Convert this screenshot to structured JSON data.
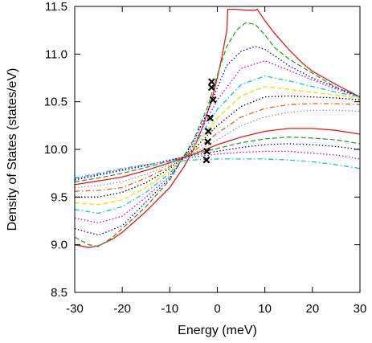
{
  "chart_data": {
    "type": "line",
    "title": "",
    "xlabel": "Energy (meV)",
    "ylabel": "Density of States (states/eV)",
    "xlim": [
      -30,
      30
    ],
    "ylim": [
      8.5,
      11.5
    ],
    "xticks": [
      "-30",
      "-20",
      "-10",
      "0",
      "10",
      "20",
      "30"
    ],
    "yticks": [
      "8.5",
      "9.0",
      "9.5",
      "10.0",
      "10.5",
      "11.0",
      "11.5"
    ],
    "grid": false,
    "legend": "none",
    "series": [
      {
        "color": "#e41a1c",
        "dash": "solid",
        "x": [
          -30,
          -27,
          -25,
          -22,
          -20,
          -15,
          -10,
          -7,
          -5,
          -3,
          -1,
          0,
          1,
          2,
          2.2,
          4,
          6,
          8,
          8.4,
          10,
          12,
          15,
          18,
          20,
          25,
          30
        ],
        "y": [
          9.0,
          8.97,
          8.99,
          9.06,
          9.13,
          9.35,
          9.6,
          9.82,
          10.0,
          10.25,
          10.55,
          10.75,
          10.98,
          11.25,
          11.47,
          11.47,
          11.46,
          11.46,
          11.47,
          11.35,
          11.22,
          11.05,
          10.9,
          10.82,
          10.68,
          10.55
        ]
      },
      {
        "color": "#2ca02c",
        "dash": "dash",
        "x": [
          -30,
          -27,
          -25,
          -22,
          -20,
          -15,
          -10,
          -5,
          -2,
          0,
          2,
          4,
          6,
          8,
          10,
          12,
          15,
          20,
          25,
          30
        ],
        "y": [
          9.08,
          9.0,
          8.98,
          9.08,
          9.17,
          9.4,
          9.68,
          10.1,
          10.45,
          10.78,
          11.08,
          11.25,
          11.33,
          11.31,
          11.2,
          11.07,
          10.95,
          10.8,
          10.65,
          10.55
        ]
      },
      {
        "color": "#0000cc",
        "dash": "dot",
        "x": [
          -30,
          -25,
          -20,
          -15,
          -10,
          -5,
          -2,
          0,
          2,
          5,
          8,
          10,
          13,
          15,
          20,
          25,
          30
        ],
        "y": [
          9.17,
          9.1,
          9.2,
          9.45,
          9.7,
          10.08,
          10.4,
          10.65,
          10.88,
          11.03,
          11.08,
          11.05,
          10.95,
          10.88,
          10.75,
          10.65,
          10.55
        ]
      },
      {
        "color": "#cc00cc",
        "dash": "dot",
        "x": [
          -30,
          -25,
          -20,
          -15,
          -10,
          -5,
          0,
          5,
          10,
          15,
          20,
          25,
          30
        ],
        "y": [
          9.28,
          9.23,
          9.3,
          9.5,
          9.72,
          10.05,
          10.52,
          10.85,
          10.93,
          10.83,
          10.73,
          10.63,
          10.55
        ]
      },
      {
        "color": "#00cccc",
        "dash": "dashdot",
        "x": [
          -30,
          -25,
          -20,
          -15,
          -10,
          -5,
          0,
          5,
          10,
          15,
          20,
          25,
          30
        ],
        "y": [
          9.37,
          9.33,
          9.4,
          9.55,
          9.75,
          10.03,
          10.42,
          10.68,
          10.77,
          10.72,
          10.66,
          10.6,
          10.55
        ]
      },
      {
        "color": "#e6e600",
        "dash": "dash",
        "x": [
          -30,
          -25,
          -20,
          -15,
          -10,
          -5,
          0,
          5,
          10,
          15,
          20,
          25,
          30
        ],
        "y": [
          9.44,
          9.42,
          9.47,
          9.6,
          9.77,
          10.02,
          10.33,
          10.56,
          10.66,
          10.63,
          10.6,
          10.57,
          10.54
        ]
      },
      {
        "color": "#000000",
        "dash": "dot",
        "x": [
          -30,
          -25,
          -20,
          -15,
          -10,
          -5,
          0,
          5,
          10,
          15,
          20,
          25,
          30
        ],
        "y": [
          9.5,
          9.5,
          9.55,
          9.65,
          9.8,
          10.0,
          10.25,
          10.45,
          10.55,
          10.56,
          10.55,
          10.54,
          10.52
        ]
      },
      {
        "color": "#e0661a",
        "dash": "dashdot",
        "x": [
          -30,
          -25,
          -20,
          -15,
          -10,
          -5,
          0,
          5,
          10,
          15,
          20,
          25,
          30
        ],
        "y": [
          9.56,
          9.57,
          9.6,
          9.7,
          9.82,
          9.98,
          10.17,
          10.34,
          10.43,
          10.47,
          10.48,
          10.48,
          10.47
        ]
      },
      {
        "color": "#999999",
        "dash": "dot",
        "x": [
          -30,
          -25,
          -20,
          -15,
          -10,
          -5,
          0,
          5,
          10,
          15,
          20,
          25,
          30
        ],
        "y": [
          9.6,
          9.62,
          9.66,
          9.74,
          9.84,
          9.96,
          10.1,
          10.25,
          10.34,
          10.39,
          10.41,
          10.41,
          10.4
        ]
      },
      {
        "color": "#e41a1c",
        "dash": "solid",
        "x": [
          -30,
          -25,
          -20,
          -15,
          -10,
          -5,
          0,
          5,
          10,
          15,
          20,
          25,
          30
        ],
        "y": [
          9.63,
          9.67,
          9.71,
          9.78,
          9.86,
          9.95,
          10.05,
          10.13,
          10.19,
          10.22,
          10.22,
          10.2,
          10.16
        ]
      },
      {
        "color": "#2ca02c",
        "dash": "dash",
        "x": [
          -30,
          -25,
          -20,
          -15,
          -10,
          -5,
          0,
          5,
          10,
          15,
          20,
          25,
          30
        ],
        "y": [
          9.66,
          9.7,
          9.75,
          9.81,
          9.88,
          9.95,
          10.01,
          10.07,
          10.11,
          10.13,
          10.12,
          10.1,
          10.06
        ]
      },
      {
        "color": "#0000cc",
        "dash": "dot",
        "x": [
          -30,
          -25,
          -20,
          -15,
          -10,
          -5,
          0,
          5,
          10,
          15,
          20,
          25,
          30
        ],
        "y": [
          9.68,
          9.73,
          9.78,
          9.83,
          9.89,
          9.94,
          9.98,
          10.02,
          10.05,
          10.06,
          10.05,
          10.03,
          10.0
        ]
      },
      {
        "color": "#cc00cc",
        "dash": "dot",
        "x": [
          -30,
          -25,
          -20,
          -15,
          -10,
          -5,
          0,
          5,
          10,
          15,
          20,
          25,
          30
        ],
        "y": [
          9.69,
          9.74,
          9.79,
          9.84,
          9.88,
          9.92,
          9.95,
          9.97,
          9.98,
          9.98,
          9.96,
          9.94,
          9.9
        ]
      },
      {
        "color": "#00cccc",
        "dash": "dashdot",
        "x": [
          -30,
          -25,
          -20,
          -15,
          -10,
          -5,
          0,
          5,
          10,
          15,
          20,
          25,
          30
        ],
        "y": [
          9.7,
          9.75,
          9.8,
          9.84,
          9.87,
          9.89,
          9.9,
          9.9,
          9.9,
          9.89,
          9.87,
          9.84,
          9.8
        ]
      }
    ],
    "markers": {
      "color": "#000000",
      "symbol": "x",
      "x": [
        -1.2,
        -1.2,
        -0.9,
        -1.5,
        -1.9,
        -2.0,
        -2.2,
        -2.3
      ],
      "y": [
        10.71,
        10.65,
        10.52,
        10.33,
        10.19,
        10.08,
        9.98,
        9.89
      ]
    }
  }
}
